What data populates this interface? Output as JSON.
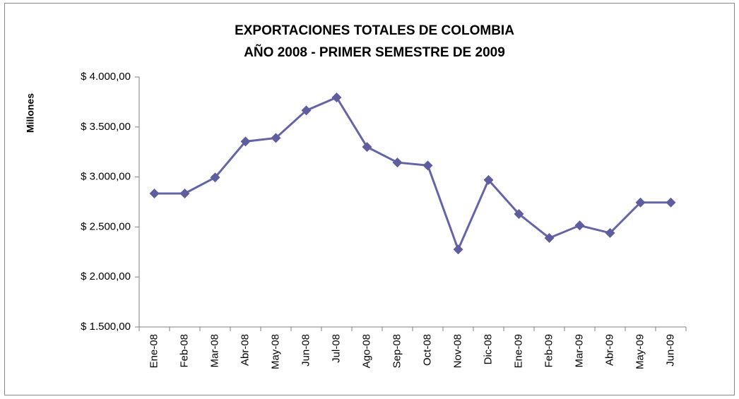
{
  "chart_data": {
    "type": "line",
    "title": "EXPORTACIONES TOTALES DE COLOMBIA",
    "subtitle": "AÑO 2008 - PRIMER SEMESTRE DE 2009",
    "y_label": "Millones",
    "categories": [
      "Ene-08",
      "Feb-08",
      "Mar-08",
      "Abr-08",
      "May-08",
      "Jun-08",
      "Jul-08",
      "Ago-08",
      "Sep-08",
      "Oct-08",
      "Nov-08",
      "Dic-08",
      "Ene-09",
      "Feb-09",
      "Mar-09",
      "Abr-09",
      "May-09",
      "Jun-09"
    ],
    "series": [
      {
        "color": "#6464a8",
        "marker_color": "#5e5e9e",
        "values": [
          2835,
          2835,
          2995,
          3355,
          3390,
          3665,
          3795,
          3300,
          3145,
          3115,
          2275,
          2970,
          2630,
          2390,
          2515,
          2440,
          2745,
          2745
        ]
      }
    ],
    "ylim": [
      1500,
      4000
    ],
    "yticks": [
      {
        "value": 1500,
        "label": "$ 1.500,00"
      },
      {
        "value": 2000,
        "label": "$ 2.000,00"
      },
      {
        "value": 2500,
        "label": "$ 2.500,00"
      },
      {
        "value": 3000,
        "label": "$ 3.000,00"
      },
      {
        "value": 3500,
        "label": "$ 3.500,00"
      },
      {
        "value": 4000,
        "label": "$ 4.000,00"
      }
    ],
    "grid": false
  }
}
